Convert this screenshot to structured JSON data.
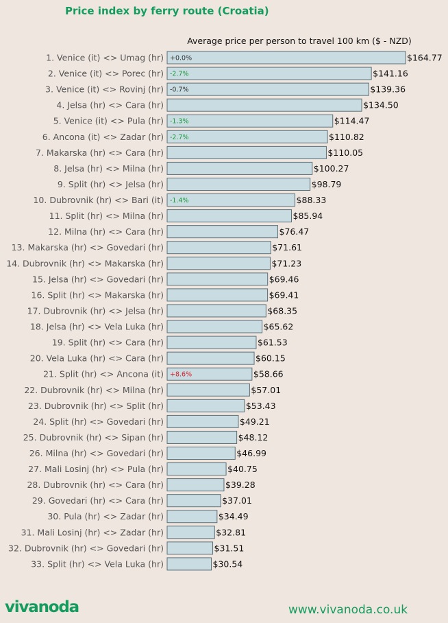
{
  "chart_data": {
    "type": "bar",
    "orientation": "horizontal",
    "title": "Price index by ferry route (Croatia)",
    "subtitle": "Average price per person to travel 100 km ($ - NZD)",
    "categories": [
      "1. Venice (it) <> Umag (hr)",
      "2. Venice (it) <> Porec (hr)",
      "3. Venice (it) <> Rovinj (hr)",
      "4. Jelsa (hr) <> Cara (hr)",
      "5. Venice (it) <> Pula (hr)",
      "6. Ancona (it) <> Zadar (hr)",
      "7. Makarska (hr) <> Cara (hr)",
      "8. Jelsa (hr) <> Milna (hr)",
      "9. Split (hr) <> Jelsa (hr)",
      "10. Dubrovnik (hr) <> Bari (it)",
      "11. Split (hr) <> Milna (hr)",
      "12. Milna (hr) <> Cara (hr)",
      "13. Makarska (hr) <> Govedari (hr)",
      "14. Dubrovnik (hr) <> Makarska (hr)",
      "15. Jelsa (hr) <> Govedari (hr)",
      "16. Split (hr) <> Makarska (hr)",
      "17. Dubrovnik (hr) <> Jelsa (hr)",
      "18. Jelsa (hr) <> Vela Luka (hr)",
      "19. Split (hr) <> Cara (hr)",
      "20. Vela Luka (hr) <> Cara (hr)",
      "21. Split (hr) <> Ancona (it)",
      "22. Dubrovnik (hr) <> Milna (hr)",
      "23. Dubrovnik (hr) <> Split (hr)",
      "24. Split (hr) <> Govedari (hr)",
      "25. Dubrovnik (hr) <> Sipan (hr)",
      "26. Milna (hr) <> Govedari (hr)",
      "27. Mali Losinj (hr) <> Pula (hr)",
      "28. Dubrovnik (hr) <> Cara (hr)",
      "29. Govedari (hr) <> Cara (hr)",
      "30. Pula (hr) <> Zadar (hr)",
      "31. Mali Losinj (hr) <> Zadar (hr)",
      "32. Dubrovnik (hr) <> Govedari (hr)",
      "33. Split (hr) <> Vela Luka (hr)"
    ],
    "values": [
      164.77,
      141.16,
      139.36,
      134.5,
      114.47,
      110.82,
      110.05,
      100.27,
      98.79,
      88.33,
      85.94,
      76.47,
      71.61,
      71.23,
      69.46,
      69.41,
      68.35,
      65.62,
      61.53,
      60.15,
      58.66,
      57.01,
      53.43,
      49.21,
      48.12,
      46.99,
      40.75,
      39.28,
      37.01,
      34.49,
      32.81,
      31.51,
      30.54
    ],
    "value_labels": [
      "$164.77",
      "$141.16",
      "$139.36",
      "$134.50",
      "$114.47",
      "$110.82",
      "$110.05",
      "$100.27",
      "$98.79",
      "$88.33",
      "$85.94",
      "$76.47",
      "$71.61",
      "$71.23",
      "$69.46",
      "$69.41",
      "$68.35",
      "$65.62",
      "$61.53",
      "$60.15",
      "$58.66",
      "$57.01",
      "$53.43",
      "$49.21",
      "$48.12",
      "$46.99",
      "$40.75",
      "$39.28",
      "$37.01",
      "$34.49",
      "$32.81",
      "$31.51",
      "$30.54"
    ],
    "changes": [
      "+0.0%",
      "-2.7%",
      "-0.7%",
      "",
      "-1.3%",
      "-2.7%",
      "",
      "",
      "",
      "-1.4%",
      "",
      "",
      "",
      "",
      "",
      "",
      "",
      "",
      "",
      "",
      "+8.6%",
      "",
      "",
      "",
      "",
      "",
      "",
      "",
      "",
      "",
      "",
      "",
      ""
    ],
    "change_colors": [
      "#333333",
      "#1a9a3a",
      "#333333",
      "",
      "#1a9a3a",
      "#1a9a3a",
      "",
      "",
      "",
      "#1a9a3a",
      "",
      "",
      "",
      "",
      "",
      "",
      "",
      "",
      "",
      "",
      "#e0202a",
      "",
      "",
      "",
      "",
      "",
      "",
      "",
      "",
      "",
      "",
      "",
      ""
    ],
    "xlim": [
      0,
      164.77
    ],
    "grid": false,
    "legend": "none",
    "bar_color": "#c9dce2",
    "bar_edge_color": "#5a6e78"
  },
  "footer": {
    "logo": "vivanoda",
    "website": "www.vivanoda.co.uk"
  },
  "colors": {
    "brand": "#149c5e",
    "background": "#f0e6e0"
  }
}
